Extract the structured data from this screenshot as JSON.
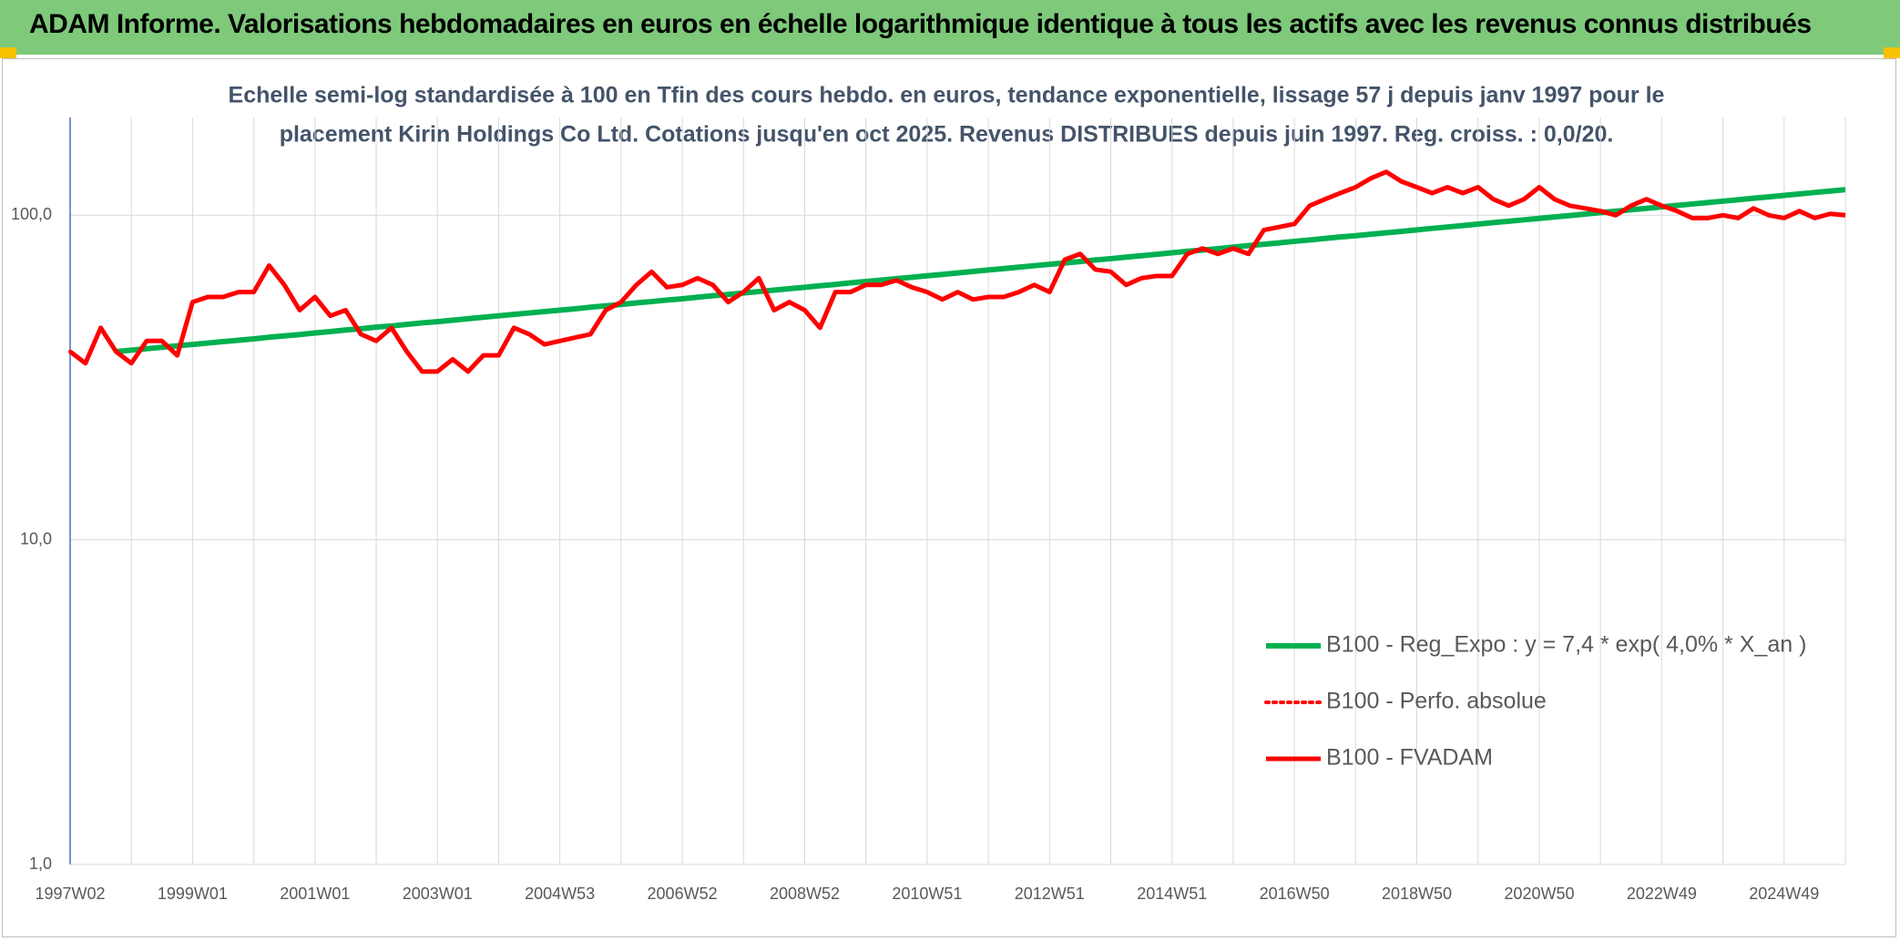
{
  "header": {
    "title": "ADAM Informe. Valorisations hebdomadaires en euros en échelle logarithmique identique à tous les actifs avec les revenus connus distribués"
  },
  "chart_data": {
    "type": "line",
    "title": "Echelle semi-log standardisée à 100 en Tfin des cours hebdo. en euros, tendance exponentielle, lissage 57 j depuis janv 1997 pour le",
    "subtitle": "placement Kirin Holdings Co Ltd. Cotations jusqu'en oct 2025. Revenus DISTRIBUES depuis juin 1997. Reg. croiss. : 0,0/20.",
    "log_scale": true,
    "grid": true,
    "legend": "lower right",
    "ylim": [
      1,
      200
    ],
    "yticks": [
      {
        "value": 1,
        "label": "1,0"
      },
      {
        "value": 10,
        "label": "10,0"
      },
      {
        "value": 100,
        "label": "100,0"
      }
    ],
    "categories": [
      "1997W02",
      null,
      null,
      null,
      null,
      null,
      null,
      null,
      "1999W01",
      null,
      null,
      null,
      null,
      null,
      null,
      null,
      "2001W01",
      null,
      null,
      null,
      null,
      null,
      null,
      null,
      "2003W01",
      null,
      null,
      null,
      null,
      null,
      null,
      null,
      "2004W53",
      null,
      null,
      null,
      null,
      null,
      null,
      null,
      "2006W52",
      null,
      null,
      null,
      null,
      null,
      null,
      null,
      "2008W52",
      null,
      null,
      null,
      null,
      null,
      null,
      null,
      "2010W51",
      null,
      null,
      null,
      null,
      null,
      null,
      null,
      "2012W51",
      null,
      null,
      null,
      null,
      null,
      null,
      null,
      "2014W51",
      null,
      null,
      null,
      null,
      null,
      null,
      null,
      "2016W50",
      null,
      null,
      null,
      null,
      null,
      null,
      null,
      "2018W50",
      null,
      null,
      null,
      null,
      null,
      null,
      null,
      "2020W50",
      null,
      null,
      null,
      null,
      null,
      null,
      null,
      "2022W49",
      null,
      null,
      null,
      null,
      null,
      null,
      null,
      "2024W49",
      null,
      null,
      null,
      null
    ],
    "series": [
      {
        "name": "B100 - Reg_Expo : y = 7,4 * exp( 4,0% *  X_an )",
        "color": "#00b050",
        "style": "solid",
        "width": 6,
        "values": [
          null,
          null,
          null,
          38.0,
          38.4,
          38.8,
          39.2,
          39.6,
          40.0,
          40.4,
          40.8,
          41.2,
          41.6,
          42.1,
          42.5,
          42.9,
          43.4,
          43.8,
          44.3,
          44.7,
          45.2,
          45.6,
          46.1,
          46.6,
          47.0,
          47.5,
          48.0,
          48.5,
          49.0,
          49.5,
          50.0,
          50.5,
          51.0,
          51.5,
          52.1,
          52.6,
          53.1,
          53.7,
          54.2,
          54.8,
          55.3,
          55.9,
          56.5,
          57.0,
          57.6,
          58.2,
          58.8,
          59.4,
          60.0,
          60.6,
          61.2,
          61.9,
          62.5,
          63.1,
          63.8,
          64.4,
          65.1,
          65.7,
          66.4,
          67.1,
          67.8,
          68.5,
          69.2,
          69.9,
          70.6,
          71.3,
          72.0,
          72.8,
          73.5,
          74.3,
          75.0,
          75.8,
          76.6,
          77.4,
          78.1,
          78.9,
          79.8,
          80.6,
          81.4,
          82.2,
          83.1,
          83.9,
          84.8,
          85.7,
          86.5,
          87.4,
          88.3,
          89.2,
          90.1,
          91.1,
          92.0,
          92.9,
          93.9,
          94.9,
          95.8,
          96.8,
          97.8,
          98.8,
          99.8,
          100.8,
          101.9,
          102.9,
          104.0,
          105.0,
          106.1,
          107.2,
          108.3,
          109.4,
          110.5,
          111.6,
          112.8,
          113.9,
          115.1,
          116.3,
          117.5,
          118.7,
          119.9
        ]
      },
      {
        "name": "B100 - Perfo. absolue",
        "color": "#ff0000",
        "style": "dotted",
        "width": 4,
        "values": [
          38,
          35,
          45,
          38,
          35,
          41,
          41,
          37,
          54,
          56,
          56,
          58,
          58,
          70,
          61,
          51,
          56,
          49,
          51,
          43,
          41,
          45,
          38,
          33,
          33,
          36,
          33,
          37,
          37,
          45,
          43,
          40,
          41,
          42,
          43,
          51,
          54,
          61,
          67,
          60,
          61,
          64,
          61,
          54,
          58,
          64,
          51,
          54,
          51,
          45,
          58,
          58,
          61,
          61,
          63,
          60,
          58,
          55,
          58,
          55,
          56,
          56,
          58,
          61,
          58,
          73,
          76,
          68,
          67,
          61,
          64,
          65,
          65,
          76,
          79,
          76,
          79,
          76,
          90,
          92,
          94,
          107,
          112,
          117,
          122,
          130,
          136,
          127,
          122,
          117,
          122,
          117,
          122,
          112,
          107,
          112,
          122,
          112,
          107,
          105,
          103,
          100,
          107,
          112,
          107,
          103,
          98,
          98,
          100,
          98,
          105,
          100,
          98,
          103,
          98,
          101,
          100
        ]
      },
      {
        "name": "B100 - FVADAM",
        "color": "#ff0000",
        "style": "solid",
        "width": 5,
        "values": [
          38,
          35,
          45,
          38,
          35,
          41,
          41,
          37,
          54,
          56,
          56,
          58,
          58,
          70,
          61,
          51,
          56,
          49,
          51,
          43,
          41,
          45,
          38,
          33,
          33,
          36,
          33,
          37,
          37,
          45,
          43,
          40,
          41,
          42,
          43,
          51,
          54,
          61,
          67,
          60,
          61,
          64,
          61,
          54,
          58,
          64,
          51,
          54,
          51,
          45,
          58,
          58,
          61,
          61,
          63,
          60,
          58,
          55,
          58,
          55,
          56,
          56,
          58,
          61,
          58,
          73,
          76,
          68,
          67,
          61,
          64,
          65,
          65,
          76,
          79,
          76,
          79,
          76,
          90,
          92,
          94,
          107,
          112,
          117,
          122,
          130,
          136,
          127,
          122,
          117,
          122,
          117,
          122,
          112,
          107,
          112,
          122,
          112,
          107,
          105,
          103,
          100,
          107,
          112,
          107,
          103,
          98,
          98,
          100,
          98,
          105,
          100,
          98,
          103,
          98,
          101,
          100
        ]
      }
    ]
  }
}
